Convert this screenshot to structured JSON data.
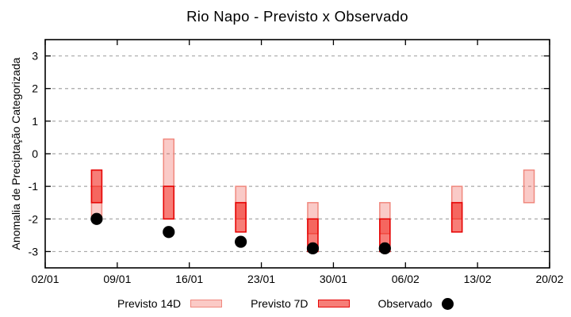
{
  "chart_data": {
    "type": "range-bar",
    "title": "Rio Napo - Previsto x Observado",
    "ylabel": "Anomalia de Preciptação Categorizada",
    "ylim": [
      -3.5,
      3.5
    ],
    "y_tick_values": [
      3,
      2,
      1,
      0,
      -1,
      -2,
      -3
    ],
    "y_tick_labels": [
      "3",
      "2",
      "1",
      "0",
      "-1",
      "-2",
      "-3"
    ],
    "x_tick_labels": [
      "02/01",
      "09/01",
      "16/01",
      "23/01",
      "30/01",
      "06/02",
      "13/02",
      "20/02"
    ],
    "x_tick_days": [
      0,
      7,
      14,
      21,
      28,
      35,
      42,
      49
    ],
    "x_range_days": [
      0,
      49
    ],
    "grid": "horizontal-dashed",
    "legend_position": "bottom-center",
    "clusters": [
      {
        "date": "07/01",
        "day": 5,
        "previsto14d": [
          -2.0,
          -1.0
        ],
        "previsto7d": [
          -1.5,
          -0.5
        ],
        "observado": -2.0
      },
      {
        "date": "14/01",
        "day": 12,
        "previsto14d": [
          -1.0,
          0.45
        ],
        "previsto7d": [
          -2.0,
          -1.0
        ],
        "observado": -2.4
      },
      {
        "date": "21/01",
        "day": 19,
        "previsto14d": [
          -2.0,
          -1.0
        ],
        "previsto7d": [
          -2.4,
          -1.5
        ],
        "observado": -2.7
      },
      {
        "date": "28/01",
        "day": 26,
        "previsto14d": [
          -2.45,
          -1.5
        ],
        "previsto7d": [
          -3.0,
          -2.0
        ],
        "observado": -2.9
      },
      {
        "date": "04/02",
        "day": 33,
        "previsto14d": [
          -2.45,
          -1.5
        ],
        "previsto7d": [
          -3.0,
          -2.0
        ],
        "observado": -2.9
      },
      {
        "date": "11/02",
        "day": 40,
        "previsto14d": [
          -2.0,
          -1.0
        ],
        "previsto7d": [
          -2.4,
          -1.5
        ],
        "observado": null
      },
      {
        "date": "18/02",
        "day": 47,
        "previsto14d": [
          -1.5,
          -0.5
        ],
        "previsto7d": null,
        "observado": null
      }
    ],
    "legend": [
      {
        "label": "Previsto 14D",
        "type": "box",
        "fill": "#fbcac6",
        "border": "#f0887e"
      },
      {
        "label": "Previsto 7D",
        "type": "box",
        "fill": "#f67e78",
        "border": "#e60505"
      },
      {
        "label": "Observado",
        "type": "dot",
        "fill": "#000000"
      }
    ],
    "colors": {
      "p14_fill": "rgba(240,80,70,0.30)",
      "p14_border": "#f0887e",
      "p7_fill": "rgba(240,20,10,0.55)",
      "p7_border": "#e60505",
      "observado": "#000000",
      "grid": "#a8a8a8",
      "axis": "#000000"
    }
  }
}
